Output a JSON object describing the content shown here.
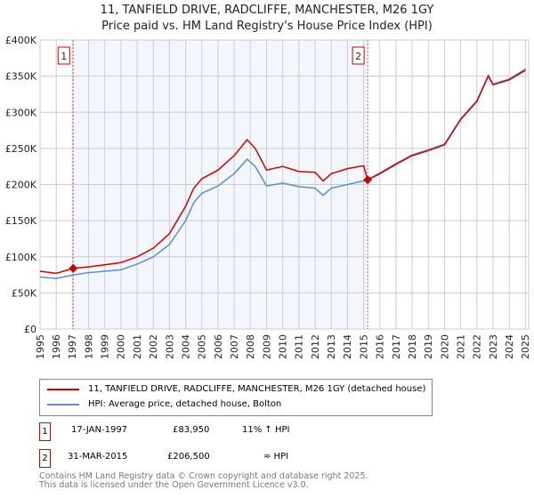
{
  "title": "11, TANFIELD DRIVE, RADCLIFFE, MANCHESTER, M26 1GY",
  "subtitle": "Price paid vs. HM Land Registry's House Price Index (HPI)",
  "chart_data": {
    "type": "line",
    "ylim": [
      0,
      400000
    ],
    "xlim": [
      1995,
      2025.2
    ],
    "yticks": [
      0,
      50000,
      100000,
      150000,
      200000,
      250000,
      300000,
      350000,
      400000
    ],
    "ytick_labels": [
      "£0",
      "£50K",
      "£100K",
      "£150K",
      "£200K",
      "£250K",
      "£300K",
      "£350K",
      "£400K"
    ],
    "xticks": [
      1995,
      1996,
      1997,
      1998,
      1999,
      2000,
      2001,
      2002,
      2003,
      2004,
      2005,
      2006,
      2007,
      2008,
      2009,
      2010,
      2011,
      2012,
      2013,
      2014,
      2015,
      2016,
      2017,
      2018,
      2019,
      2020,
      2021,
      2022,
      2023,
      2024,
      2025
    ],
    "grid": true,
    "shaded_range": [
      1997.05,
      2015.25
    ],
    "series": [
      {
        "name": "11, TANFIELD DRIVE, RADCLIFFE, MANCHESTER, M26 1GY (detached house)",
        "color": "#cc0000",
        "x": [
          1995,
          1996,
          1997.05,
          1998,
          1999,
          2000,
          2001,
          2002,
          2003,
          2004,
          2004.5,
          2005,
          2006,
          2007,
          2007.8,
          2008.3,
          2009,
          2010,
          2011,
          2012,
          2012.5,
          2013,
          2014,
          2015,
          2015.25,
          2016,
          2017,
          2018,
          2019,
          2020,
          2021,
          2022,
          2022.7,
          2023,
          2024,
          2025
        ],
        "y": [
          80000,
          77000,
          83950,
          86000,
          89000,
          92000,
          100000,
          112000,
          132000,
          170000,
          195000,
          208000,
          220000,
          240000,
          262000,
          250000,
          220000,
          225000,
          218000,
          217000,
          205000,
          215000,
          222000,
          226000,
          206500,
          215000,
          228000,
          240000,
          247000,
          255000,
          290000,
          315000,
          350000,
          338000,
          345000,
          358000
        ]
      },
      {
        "name": "HPI: Average price, detached house, Bolton",
        "color": "#5b8fd0",
        "x": [
          1995,
          1996,
          1997.05,
          1998,
          1999,
          2000,
          2001,
          2002,
          2003,
          2004,
          2004.5,
          2005,
          2006,
          2007,
          2007.8,
          2008.3,
          2009,
          2010,
          2011,
          2012,
          2012.5,
          2013,
          2014,
          2015,
          2015.25,
          2016,
          2017,
          2018,
          2019,
          2020,
          2021,
          2022,
          2022.7,
          2023,
          2024,
          2025
        ],
        "y": [
          72000,
          70000,
          75000,
          78000,
          80000,
          82000,
          90000,
          100000,
          117000,
          150000,
          175000,
          188000,
          198000,
          215000,
          235000,
          225000,
          198000,
          202000,
          197000,
          195000,
          185000,
          195000,
          200000,
          205000,
          206500,
          216000,
          229000,
          241000,
          248000,
          256000,
          291000,
          316000,
          351000,
          339000,
          346000,
          360000
        ]
      }
    ],
    "markers": [
      {
        "label": "1",
        "x": 1997.05,
        "y": 83950
      },
      {
        "label": "2",
        "x": 2015.25,
        "y": 206500
      }
    ]
  },
  "legend": [
    "11, TANFIELD DRIVE, RADCLIFFE, MANCHESTER, M26 1GY (detached house)",
    "HPI: Average price, detached house, Bolton"
  ],
  "transactions": [
    {
      "num": "1",
      "date": "17-JAN-1997",
      "price": "£83,950",
      "hpi": "11% ↑ HPI"
    },
    {
      "num": "2",
      "date": "31-MAR-2015",
      "price": "£206,500",
      "hpi": "≈ HPI"
    }
  ],
  "footer": [
    "Contains HM Land Registry data © Crown copyright and database right 2025.",
    "This data is licensed under the Open Government Licence v3.0."
  ]
}
